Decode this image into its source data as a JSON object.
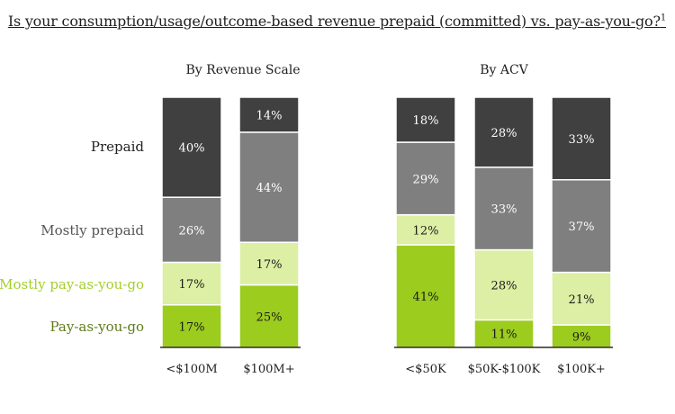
{
  "title": "Is your consumption/usage/outcome-based revenue prepaid (committed) vs. pay-as-you-go?",
  "title_superscript": "1",
  "colors": {
    "prepaid": "#404040",
    "mostly_prepaid": "#7f7f7f",
    "mostly_payg": "#dcefa4",
    "payg": "#9ccc1e",
    "legend_mostly_payg": "#a4cf2a",
    "legend_payg": "#5f7a1a",
    "legend_prepaid": "#222222",
    "legend_mostly_prepaid": "#555555"
  },
  "chart_data": [
    {
      "type": "bar",
      "stacked": true,
      "percent": true,
      "title": "By Revenue Scale",
      "categories": [
        "<$100M",
        "$100M+"
      ],
      "series": [
        {
          "name": "Pay-as-you-go",
          "values": [
            17,
            25
          ]
        },
        {
          "name": "Mostly pay-as-you-go",
          "values": [
            17,
            17
          ]
        },
        {
          "name": "Mostly prepaid",
          "values": [
            26,
            44
          ]
        },
        {
          "name": "Prepaid",
          "values": [
            40,
            14
          ]
        }
      ],
      "labels": [
        [
          "17%",
          "25%"
        ],
        [
          "17%",
          "17%"
        ],
        [
          "26%",
          "44%"
        ],
        [
          "40%",
          "14%"
        ]
      ]
    },
    {
      "type": "bar",
      "stacked": true,
      "percent": true,
      "title": "By ACV",
      "categories": [
        "<$50K",
        "$50K-$100K",
        "$100K+"
      ],
      "series": [
        {
          "name": "Pay-as-you-go",
          "values": [
            41,
            11,
            9
          ]
        },
        {
          "name": "Mostly pay-as-you-go",
          "values": [
            12,
            28,
            21
          ]
        },
        {
          "name": "Mostly prepaid",
          "values": [
            29,
            33,
            37
          ]
        },
        {
          "name": "Prepaid",
          "values": [
            18,
            28,
            33
          ]
        }
      ],
      "labels": [
        [
          "41%",
          "11%",
          "9%"
        ],
        [
          "12%",
          "28%",
          "21%"
        ],
        [
          "29%",
          "33%",
          "37%"
        ],
        [
          "18%",
          "28%",
          "33%"
        ]
      ]
    }
  ],
  "legend": [
    "Prepaid",
    "Mostly prepaid",
    "Mostly pay-as-you-go",
    "Pay-as-you-go"
  ]
}
